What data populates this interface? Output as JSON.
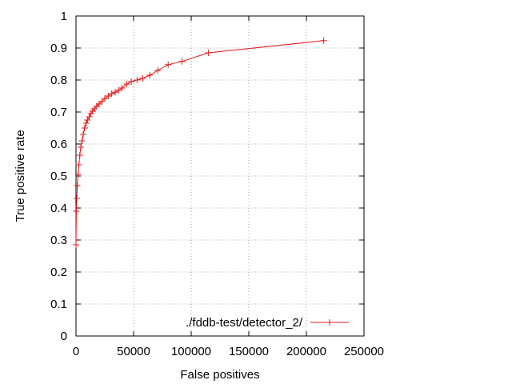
{
  "chart_data": {
    "type": "line",
    "xlabel": "False positives",
    "ylabel": "True positive rate",
    "xlim": [
      0,
      250000
    ],
    "ylim": [
      0,
      1
    ],
    "x_ticks": [
      "0",
      "50000",
      "100000",
      "150000",
      "200000",
      "250000"
    ],
    "y_ticks": [
      "0",
      "0.1",
      "0.2",
      "0.3",
      "0.4",
      "0.5",
      "0.6",
      "0.7",
      "0.8",
      "0.9",
      "1"
    ],
    "grid": true,
    "legend_position": "bottom-right",
    "series": [
      {
        "name": "./fddb-test/detector_2/",
        "color": "#e41a1c",
        "marker": "plus",
        "x": [
          0,
          300,
          700,
          1200,
          1800,
          2500,
          3300,
          4200,
          5200,
          6300,
          7500,
          8800,
          10000,
          11500,
          13000,
          14500,
          16000,
          18000,
          20000,
          22500,
          25000,
          28000,
          31000,
          34000,
          37000,
          40000,
          44000,
          48000,
          53000,
          58000,
          64000,
          71000,
          80000,
          92000,
          115000,
          215000
        ],
        "y": [
          0.285,
          0.39,
          0.43,
          0.47,
          0.505,
          0.535,
          0.565,
          0.59,
          0.61,
          0.63,
          0.65,
          0.665,
          0.675,
          0.685,
          0.695,
          0.703,
          0.71,
          0.718,
          0.725,
          0.733,
          0.742,
          0.75,
          0.757,
          0.762,
          0.768,
          0.775,
          0.787,
          0.795,
          0.8,
          0.805,
          0.815,
          0.83,
          0.848,
          0.858,
          0.885,
          0.923
        ]
      }
    ]
  }
}
